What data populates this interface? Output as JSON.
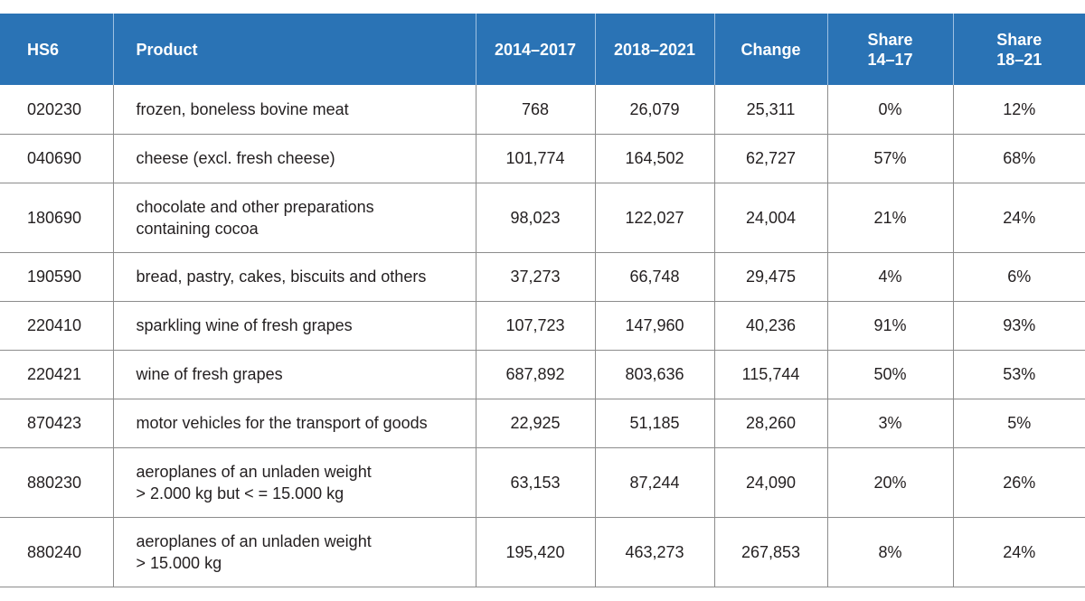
{
  "header": {
    "hs6": "HS6",
    "product": "Product",
    "period1": "2014–2017",
    "period2": "2018–2021",
    "change": "Change",
    "share1_line1": "Share",
    "share1_line2": "14–17",
    "share2_line1": "Share",
    "share2_line2": "18–21"
  },
  "rows": [
    {
      "hs6": "020230",
      "product": [
        "frozen, boneless bovine meat"
      ],
      "p1": "768",
      "p2": "26,079",
      "change": "25,311",
      "s1": "0%",
      "s2": "12%"
    },
    {
      "hs6": "040690",
      "product": [
        "cheese (excl. fresh cheese)"
      ],
      "p1": "101,774",
      "p2": "164,502",
      "change": "62,727",
      "s1": "57%",
      "s2": "68%"
    },
    {
      "hs6": "180690",
      "product": [
        "chocolate and other preparations",
        "containing cocoa"
      ],
      "p1": "98,023",
      "p2": "122,027",
      "change": "24,004",
      "s1": "21%",
      "s2": "24%"
    },
    {
      "hs6": "190590",
      "product": [
        "bread, pastry, cakes, biscuits and others"
      ],
      "p1": "37,273",
      "p2": "66,748",
      "change": "29,475",
      "s1": "4%",
      "s2": "6%"
    },
    {
      "hs6": "220410",
      "product": [
        "sparkling wine of fresh grapes"
      ],
      "p1": "107,723",
      "p2": "147,960",
      "change": "40,236",
      "s1": "91%",
      "s2": "93%"
    },
    {
      "hs6": "220421",
      "product": [
        "wine of fresh grapes"
      ],
      "p1": "687,892",
      "p2": "803,636",
      "change": "115,744",
      "s1": "50%",
      "s2": "53%"
    },
    {
      "hs6": "870423",
      "product": [
        "motor vehicles for the transport of goods"
      ],
      "p1": "22,925",
      "p2": "51,185",
      "change": "28,260",
      "s1": "3%",
      "s2": "5%"
    },
    {
      "hs6": "880230",
      "product": [
        "aeroplanes of an unladen weight",
        "> 2.000 kg but < = 15.000 kg"
      ],
      "p1": "63,153",
      "p2": "87,244",
      "change": "24,090",
      "s1": "20%",
      "s2": "26%"
    },
    {
      "hs6": "880240",
      "product": [
        "aeroplanes of an unladen weight",
        "> 15.000 kg"
      ],
      "p1": "195,420",
      "p2": "463,273",
      "change": "267,853",
      "s1": "8%",
      "s2": "24%"
    }
  ]
}
